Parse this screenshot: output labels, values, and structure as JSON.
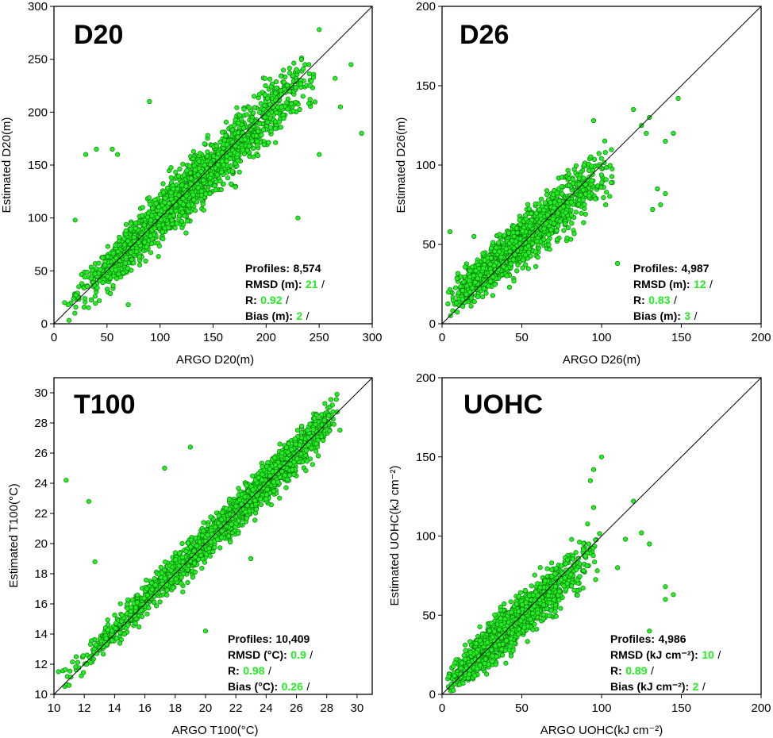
{
  "point_color": "#22ee22",
  "point_stroke": "#0a6a0a",
  "value_color": "#22ee22",
  "chart_data": [
    {
      "type": "scatter",
      "title": "D20",
      "xlabel": "ARGO D20(m)",
      "ylabel": "Estimated D20(m)",
      "xlim": [
        0,
        300
      ],
      "ylim": [
        0,
        300
      ],
      "xticks": [
        "0",
        "50",
        "100",
        "150",
        "200",
        "250",
        "300"
      ],
      "yticks": [
        "0",
        "50",
        "100",
        "150",
        "200",
        "250",
        "300"
      ],
      "identity_line": true,
      "stats": {
        "profiles_label": "Profiles:",
        "profiles_value": "8,574",
        "rmsd_label": "RMSD (m):",
        "rmsd_value": "21",
        "r_label": "R:",
        "r_value": "0.92",
        "bias_label": "Bias (m):",
        "bias_value": "2",
        "separator": "/"
      },
      "cloud": {
        "n": 1800,
        "xmin": 8,
        "xmax": 250,
        "xmode": 130,
        "slope": 0.96,
        "intercept": 4,
        "spread": 18,
        "clip": [
          0,
          300
        ]
      },
      "points": [
        [
          20,
          98
        ],
        [
          30,
          160
        ],
        [
          40,
          165
        ],
        [
          55,
          165
        ],
        [
          60,
          160
        ],
        [
          90,
          210
        ],
        [
          10,
          20
        ],
        [
          70,
          18
        ],
        [
          265,
          232
        ],
        [
          280,
          245
        ],
        [
          290,
          180
        ],
        [
          250,
          278
        ],
        [
          270,
          205
        ],
        [
          145,
          178
        ],
        [
          230,
          100
        ],
        [
          250,
          160
        ]
      ]
    },
    {
      "type": "scatter",
      "title": "D26",
      "xlabel": "ARGO D26(m)",
      "ylabel": "Estimated D26(m)",
      "xlim": [
        0,
        200
      ],
      "ylim": [
        0,
        200
      ],
      "xticks": [
        "0",
        "50",
        "100",
        "150",
        "200"
      ],
      "yticks": [
        "0",
        "50",
        "100",
        "150",
        "200"
      ],
      "identity_line": true,
      "stats": {
        "profiles_label": "Profiles:",
        "profiles_value": "4,987",
        "rmsd_label": "RMSD (m):",
        "rmsd_value": "12",
        "r_label": "R:",
        "r_value": "0.83",
        "bias_label": "Bias (m):",
        "bias_value": "3",
        "separator": "/"
      },
      "cloud": {
        "n": 1500,
        "xmin": 2,
        "xmax": 110,
        "xmode": 40,
        "slope": 0.85,
        "intercept": 10,
        "spread": 11,
        "clip": [
          0,
          200
        ]
      },
      "points": [
        [
          120,
          135
        ],
        [
          125,
          125
        ],
        [
          128,
          120
        ],
        [
          140,
          115
        ],
        [
          145,
          120
        ],
        [
          148,
          142
        ],
        [
          135,
          85
        ],
        [
          140,
          82
        ],
        [
          137,
          75
        ],
        [
          132,
          72
        ],
        [
          110,
          38
        ],
        [
          20,
          55
        ],
        [
          5,
          58
        ],
        [
          130,
          130
        ],
        [
          95,
          128
        ]
      ]
    },
    {
      "type": "scatter",
      "title": "T100",
      "xlabel": "ARGO T100(°C)",
      "ylabel": "Estimated T100(°C)",
      "xlim": [
        10,
        31
      ],
      "ylim": [
        10,
        31
      ],
      "xticks": [
        "10",
        "12",
        "14",
        "16",
        "18",
        "20",
        "22",
        "24",
        "26",
        "28",
        "30"
      ],
      "yticks": [
        "10",
        "12",
        "14",
        "16",
        "18",
        "20",
        "22",
        "24",
        "26",
        "28",
        "30"
      ],
      "identity_line": true,
      "stats": {
        "profiles_label": "Profiles:",
        "profiles_value": "10,409",
        "rmsd_label": "RMSD (°C):",
        "rmsd_value": "0.9",
        "r_label": "R:",
        "r_value": "0.98",
        "bias_label": "Bias (°C):",
        "bias_value": "0.26",
        "separator": "/"
      },
      "cloud": {
        "n": 2000,
        "xmin": 10.5,
        "xmax": 29,
        "xmode": 24,
        "slope": 0.98,
        "intercept": 0.5,
        "spread": 0.8,
        "clip": [
          10,
          30
        ]
      },
      "points": [
        [
          10.8,
          24.2
        ],
        [
          12.3,
          22.8
        ],
        [
          17.3,
          25
        ],
        [
          19,
          26.4
        ],
        [
          12.7,
          18.8
        ],
        [
          11,
          10.6
        ],
        [
          10.3,
          11.5
        ],
        [
          20,
          14.2
        ],
        [
          18.5,
          16.8
        ],
        [
          23,
          19
        ]
      ]
    },
    {
      "type": "scatter",
      "title": "UOHC",
      "xlabel": "ARGO UOHC(kJ cm⁻²)",
      "ylabel": "Estimated UOHC(kJ cm⁻²)",
      "xlim": [
        0,
        200
      ],
      "ylim": [
        0,
        200
      ],
      "xticks": [
        "0",
        "50",
        "100",
        "150",
        "200"
      ],
      "yticks": [
        "0",
        "50",
        "100",
        "150",
        "200"
      ],
      "identity_line": true,
      "stats": {
        "profiles_label": "Profiles:",
        "profiles_value": "4,986",
        "rmsd_label": "RMSD (kJ cm⁻²):",
        "rmsd_value": "10",
        "r_label": "R:",
        "r_value": "0.89",
        "bias_label": "Bias (kJ cm⁻²):",
        "bias_value": "2",
        "separator": "/"
      },
      "cloud": {
        "n": 1500,
        "xmin": 1,
        "xmax": 100,
        "xmode": 30,
        "slope": 0.9,
        "intercept": 4,
        "spread": 10,
        "clip": [
          0,
          200
        ]
      },
      "points": [
        [
          100,
          150
        ],
        [
          95,
          118
        ],
        [
          120,
          122
        ],
        [
          125,
          102
        ],
        [
          110,
          80
        ],
        [
          130,
          95
        ],
        [
          140,
          60
        ],
        [
          140,
          68
        ],
        [
          145,
          63
        ],
        [
          130,
          40
        ],
        [
          95,
          142
        ],
        [
          93,
          135
        ],
        [
          115,
          98
        ]
      ]
    }
  ]
}
